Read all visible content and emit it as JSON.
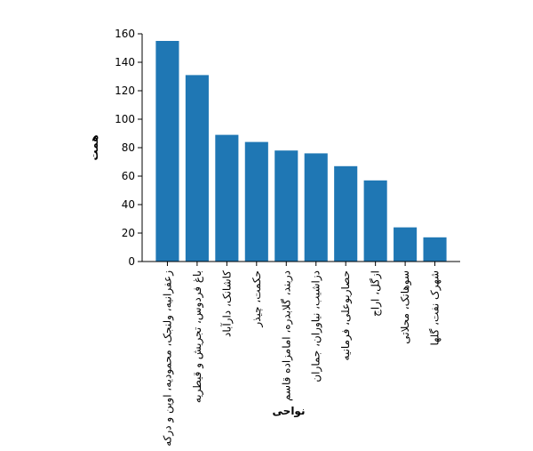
{
  "chart_data": {
    "type": "bar",
    "x_label": "نواحی",
    "y_label": "همت",
    "categories": [
      "زعفرانیه، ولنجک، محمودیه، اوین و درکه",
      "باغ فردوس، تجریش و قیطریه",
      "کاشانک، دارآباد",
      "حکمت، چیذر",
      "دربند، گلابدره، امامزاده قاسم",
      "دزاشیب، نیاوران، جماران",
      "حصاربوعلی، فرمانیه",
      "ازگل، اراج",
      "سوهانک، محلاتی",
      "شهرک نفت، گلها"
    ],
    "values": [
      155,
      131,
      89,
      84,
      78,
      76,
      67,
      57,
      24,
      17
    ],
    "color": "#1f77b4",
    "ylim": [
      0,
      160
    ],
    "yticks": [
      0,
      20,
      40,
      60,
      80,
      100,
      120,
      140,
      160
    ]
  }
}
